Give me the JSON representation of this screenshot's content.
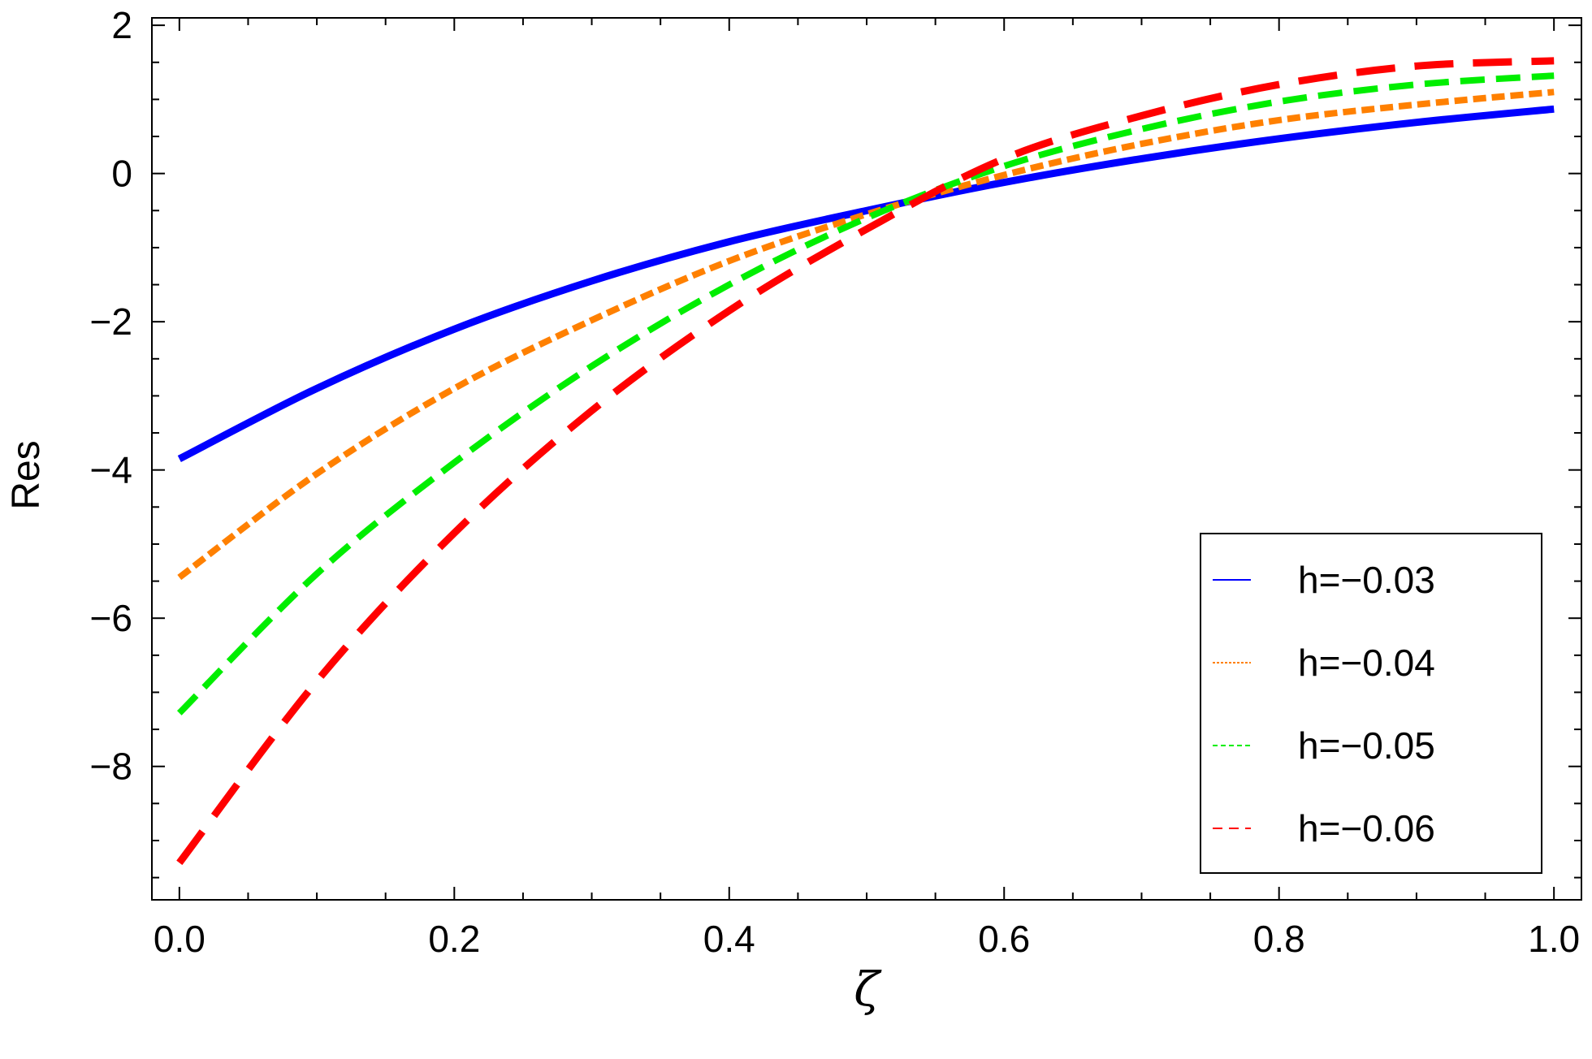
{
  "chart_data": {
    "type": "line",
    "title": "",
    "xlabel": "ζ",
    "ylabel": "Res",
    "xlim": [
      -0.02,
      1.02
    ],
    "ylim": [
      -9.8,
      2.1
    ],
    "x_ticks": [
      0.0,
      0.2,
      0.4,
      0.6,
      0.8,
      1.0
    ],
    "x_tick_labels": [
      "0.0",
      "0.2",
      "0.4",
      "0.6",
      "0.8",
      "1.0"
    ],
    "y_ticks": [
      2,
      0,
      -2,
      -4,
      -6,
      -8
    ],
    "y_tick_labels": [
      "2",
      "0",
      "−2",
      "−4",
      "−6",
      "−8"
    ],
    "grid": false,
    "legend_position": "bottom-right",
    "x": [
      0.0,
      0.1,
      0.2,
      0.3,
      0.4,
      0.5,
      0.6,
      0.7,
      0.8,
      0.9,
      1.0
    ],
    "series": [
      {
        "name": "h=−0.03",
        "color": "#0000ff",
        "style": "solid",
        "values": [
          -3.85,
          -2.9,
          -2.1,
          -1.45,
          -0.92,
          -0.5,
          -0.12,
          0.2,
          0.47,
          0.69,
          0.87
        ]
      },
      {
        "name": "h=−0.04",
        "color": "#ff8000",
        "style": "dotted",
        "values": [
          -5.45,
          -4.05,
          -2.9,
          -1.98,
          -1.18,
          -0.55,
          -0.02,
          0.4,
          0.72,
          0.93,
          1.1
        ]
      },
      {
        "name": "h=−0.05",
        "color": "#00ee00",
        "style": "dashed",
        "values": [
          -7.28,
          -5.4,
          -3.9,
          -2.6,
          -1.5,
          -0.6,
          0.1,
          0.6,
          0.97,
          1.2,
          1.32
        ]
      },
      {
        "name": "h=−0.06",
        "color": "#ff0000",
        "style": "long-dashed",
        "values": [
          -9.3,
          -6.85,
          -4.85,
          -3.2,
          -1.85,
          -0.75,
          0.2,
          0.78,
          1.2,
          1.45,
          1.52
        ]
      }
    ]
  }
}
